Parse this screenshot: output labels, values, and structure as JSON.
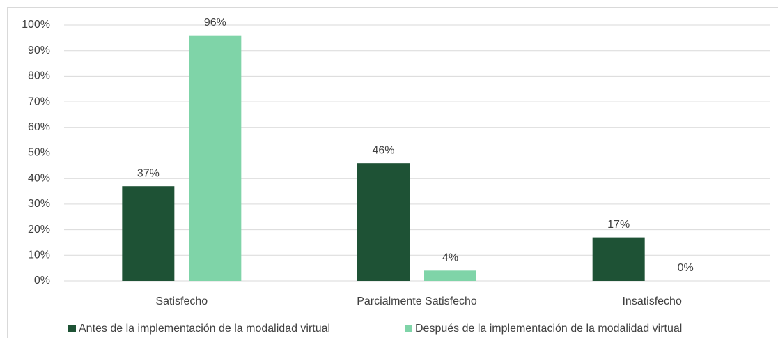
{
  "chart_data": {
    "type": "bar",
    "categories": [
      "Satisfecho",
      "Parcialmente Satisfecho",
      "Insatisfecho"
    ],
    "series": [
      {
        "name": "Antes de la implementación de la modalidad virtual",
        "color": "#1e5235",
        "values": [
          37,
          46,
          17
        ],
        "value_labels": [
          "37%",
          "46%",
          "17%"
        ]
      },
      {
        "name": "Después de la implementación de la modalidad virtual",
        "color": "#7fd4a8",
        "values": [
          96,
          4,
          0
        ],
        "value_labels": [
          "96%",
          "4%",
          "0%"
        ]
      }
    ],
    "ylim": [
      0,
      100
    ],
    "yticks": [
      {
        "value": 0,
        "label": "0%"
      },
      {
        "value": 10,
        "label": "10%"
      },
      {
        "value": 20,
        "label": "20%"
      },
      {
        "value": 30,
        "label": "30%"
      },
      {
        "value": 40,
        "label": "40%"
      },
      {
        "value": 50,
        "label": "50%"
      },
      {
        "value": 60,
        "label": "60%"
      },
      {
        "value": 70,
        "label": "70%"
      },
      {
        "value": 80,
        "label": "80%"
      },
      {
        "value": 90,
        "label": "90%"
      },
      {
        "value": 100,
        "label": "100%"
      }
    ],
    "grid": true,
    "legend": "bottom"
  }
}
